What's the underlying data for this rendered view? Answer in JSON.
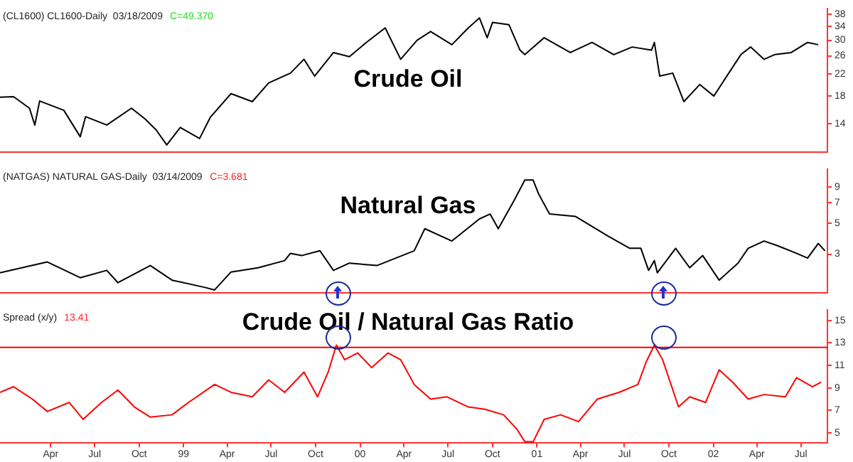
{
  "chart_data": [
    {
      "type": "line",
      "title": "Crude Oil",
      "subtitle": "(CL1600) CL1600-Daily  03/18/2009",
      "annotations": [
        "C=49.370"
      ],
      "log": true,
      "tick_labels": "y",
      "x": [
        "1997-12-17",
        "1998-01-14",
        "1998-02-16",
        "1998-02-27",
        "1998-03-09",
        "1998-04-28",
        "1998-06-01",
        "1998-06-12",
        "1998-07-26",
        "1998-09-15",
        "1998-10-13",
        "1998-11-05",
        "1998-11-27",
        "1998-12-25",
        "1999-02-03",
        "1999-02-25",
        "1999-04-09",
        "1999-05-23",
        "1999-06-26",
        "1999-08-10",
        "1999-09-07",
        "1999-09-29",
        "1999-11-07",
        "1999-12-10",
        "2000-01-14",
        "2000-02-22",
        "2000-03-25",
        "2000-04-28",
        "2000-05-26",
        "2000-07-09",
        "2000-08-12",
        "2000-09-04",
        "2000-09-20",
        "2000-10-01",
        "2000-11-04",
        "2000-11-27",
        "2000-12-07",
        "2001-01-16",
        "2001-03-11",
        "2001-04-25",
        "2001-06-09",
        "2001-07-17",
        "2001-08-26",
        "2001-09-01",
        "2001-09-12",
        "2001-10-09",
        "2001-11-01",
        "2001-12-04",
        "2002-01-02",
        "2002-01-24",
        "2002-02-27",
        "2002-03-19",
        "2002-04-16",
        "2002-05-08",
        "2002-06-11",
        "2002-07-15",
        "2002-08-06"
      ],
      "series": [
        {
          "color": "#000000",
          "values": [
            17.8,
            17.9,
            16.1,
            13.8,
            17.2,
            15.8,
            12.4,
            14.9,
            13.8,
            16.1,
            14.6,
            13.2,
            11.5,
            13.5,
            12.2,
            14.8,
            18.4,
            17.1,
            20.3,
            22.2,
            25.2,
            21.6,
            26.8,
            25.8,
            29.4,
            33.6,
            25.2,
            30.0,
            32.5,
            28.8,
            33.6,
            36.8,
            30.7,
            35.3,
            34.6,
            27.4,
            26.3,
            30.7,
            26.8,
            29.4,
            26.3,
            28.2,
            27.4,
            29.4,
            21.6,
            22.2,
            17.1,
            20.0,
            18.0,
            20.9,
            26.3,
            28.2,
            25.2,
            26.3,
            26.8,
            29.4,
            28.8
          ]
        }
      ],
      "xlim": [
        "1997-12-17",
        "2002-08-25"
      ],
      "ylim": [
        10.8,
        40
      ],
      "yticks": [
        14,
        18,
        22,
        26,
        30,
        34,
        38
      ]
    },
    {
      "type": "line",
      "title": "Natural Gas",
      "subtitle": "(NATGAS) NATURAL GAS-Daily  03/14/2009",
      "annotations": [
        "C=3.681"
      ],
      "log": true,
      "tick_labels": "y",
      "x": [
        "1997-12-17",
        "1998-03-25",
        "1998-06-01",
        "1998-07-26",
        "1998-08-18",
        "1998-10-24",
        "1998-12-08",
        "1999-02-14",
        "1999-03-06",
        "1999-04-09",
        "1999-06-04",
        "1999-07-29",
        "1999-08-10",
        "1999-09-02",
        "1999-10-10",
        "1999-11-07",
        "1999-12-10",
        "2000-02-05",
        "2000-04-22",
        "2000-05-14",
        "2000-07-09",
        "2000-09-04",
        "2000-09-26",
        "2000-10-13",
        "2000-11-16",
        "2000-12-07",
        "2000-12-24",
        "2001-01-05",
        "2001-01-27",
        "2001-03-22",
        "2001-05-28",
        "2001-07-12",
        "2001-08-04",
        "2001-08-20",
        "2001-09-01",
        "2001-09-07",
        "2001-10-15",
        "2001-11-13",
        "2001-12-10",
        "2002-01-13",
        "2002-02-21",
        "2002-03-14",
        "2002-04-16",
        "2002-05-14",
        "2002-06-22",
        "2002-07-15",
        "2002-08-06",
        "2002-08-20"
      ],
      "series": [
        {
          "color": "#000000",
          "values": [
            2.21,
            2.64,
            2.04,
            2.3,
            1.88,
            2.49,
            1.96,
            1.74,
            1.67,
            2.24,
            2.4,
            2.7,
            3.04,
            2.93,
            3.17,
            2.3,
            2.59,
            2.49,
            3.17,
            4.55,
            3.72,
            5.34,
            5.79,
            4.55,
            7.35,
            10.1,
            10.1,
            7.97,
            5.79,
            5.56,
            4.03,
            3.3,
            3.3,
            2.3,
            2.7,
            2.21,
            3.3,
            2.4,
            2.93,
            1.96,
            2.59,
            3.3,
            3.72,
            3.44,
            3.04,
            2.81,
            3.57,
            3.17
          ]
        }
      ],
      "xlim": [
        "1997-12-17",
        "2002-08-25"
      ],
      "ylim": [
        1.6,
        12
      ],
      "yticks": [
        3,
        5,
        7,
        9
      ]
    },
    {
      "type": "line",
      "title": "Crude Oil / Natural Gas Ratio",
      "subtitle": "Spread (x/y)",
      "annotations": [
        "13.41"
      ],
      "x": [
        "1997-12-17",
        "1998-01-14",
        "1998-02-22",
        "1998-03-25",
        "1998-05-09",
        "1998-06-07",
        "1998-07-15",
        "1998-08-18",
        "1998-09-21",
        "1998-10-24",
        "1998-12-08",
        "1999-01-11",
        "1999-03-06",
        "1999-04-09",
        "1999-05-23",
        "1999-06-26",
        "1999-07-29",
        "1999-09-07",
        "1999-10-05",
        "1999-10-27",
        "1999-11-13",
        "1999-11-30",
        "1999-12-27",
        "2000-01-25",
        "2000-02-28",
        "2000-03-25",
        "2000-04-22",
        "2000-05-26",
        "2000-06-29",
        "2000-08-12",
        "2000-09-15",
        "2000-10-24",
        "2000-11-21",
        "2000-12-07",
        "2000-12-24",
        "2001-01-16",
        "2001-02-19",
        "2001-03-28",
        "2001-05-06",
        "2001-06-20",
        "2001-07-29",
        "2001-08-15",
        "2001-09-01",
        "2001-09-18",
        "2001-10-21",
        "2001-11-13",
        "2001-12-16",
        "2002-01-13",
        "2002-02-10",
        "2002-03-14",
        "2002-04-16",
        "2002-05-30",
        "2002-06-22",
        "2002-07-25",
        "2002-08-12"
      ],
      "series": [
        {
          "color": "#ff0000",
          "values": [
            8.6,
            9.1,
            8.0,
            6.9,
            7.7,
            6.2,
            7.7,
            8.8,
            7.3,
            6.4,
            6.6,
            7.7,
            9.3,
            8.6,
            8.2,
            9.7,
            8.6,
            10.4,
            8.2,
            10.4,
            12.8,
            11.5,
            12.1,
            10.8,
            12.1,
            11.5,
            9.3,
            8.0,
            8.2,
            7.3,
            7.1,
            6.6,
            5.3,
            4.2,
            4.2,
            6.2,
            6.6,
            6.0,
            8.0,
            8.6,
            9.3,
            11.3,
            12.8,
            11.5,
            7.3,
            8.2,
            7.7,
            10.6,
            9.5,
            8.0,
            8.4,
            8.2,
            9.9,
            9.1,
            9.5
          ]
        }
      ],
      "ref_lines": [
        {
          "axis": "y",
          "value": 12.6,
          "color": "#ff0000"
        }
      ],
      "xlim": [
        "1997-12-17",
        "2002-08-25"
      ],
      "xticks": [
        {
          "value": "1998-04-01",
          "label": "Apr"
        },
        {
          "value": "1998-07-01",
          "label": "Jul"
        },
        {
          "value": "1998-10-01",
          "label": "Oct"
        },
        {
          "value": "1999-01-01",
          "label": "99"
        },
        {
          "value": "1999-04-01",
          "label": "Apr"
        },
        {
          "value": "1999-07-01",
          "label": "Jul"
        },
        {
          "value": "1999-10-01",
          "label": "Oct"
        },
        {
          "value": "2000-01-01",
          "label": "00"
        },
        {
          "value": "2000-04-01",
          "label": "Apr"
        },
        {
          "value": "2000-07-01",
          "label": "Jul"
        },
        {
          "value": "2000-10-01",
          "label": "Oct"
        },
        {
          "value": "2001-01-01",
          "label": "01"
        },
        {
          "value": "2001-04-01",
          "label": "Apr"
        },
        {
          "value": "2001-07-01",
          "label": "Jul"
        },
        {
          "value": "2001-10-01",
          "label": "Oct"
        },
        {
          "value": "2002-01-01",
          "label": "02"
        },
        {
          "value": "2002-04-01",
          "label": "Apr"
        },
        {
          "value": "2002-07-01",
          "label": "Jul"
        }
      ],
      "ylim": [
        4.1,
        15.9
      ],
      "yticks": [
        5,
        7,
        9,
        11,
        13,
        15
      ]
    }
  ]
}
